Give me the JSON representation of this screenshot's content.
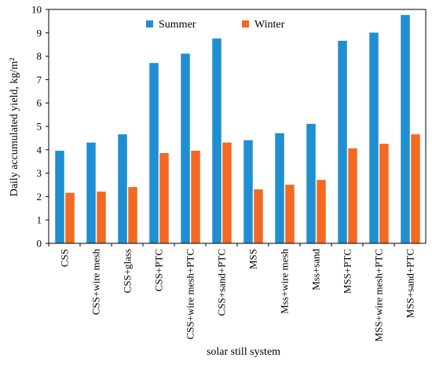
{
  "chart_data": {
    "type": "bar",
    "xlabel": "solar still system",
    "ylabel": "Daily accumulated yield, kg/m²",
    "ylim": [
      0,
      10
    ],
    "yticks": [
      0,
      1,
      2,
      3,
      4,
      5,
      6,
      7,
      8,
      9,
      10
    ],
    "grid": false,
    "legend_position": "top-center",
    "categories": [
      "CSS",
      "CSS+wire mesh",
      "CSS+glass",
      "CSS+PTC",
      "CSS+wire mesh+PTC",
      "CSS+sand+PTC",
      "MSS",
      "Mss+wire mesh",
      "Mss+sand",
      "MSS+PTC",
      "MSS+wire mesh+PTC",
      "MSS+sand+PTC"
    ],
    "series": [
      {
        "name": "Summer",
        "color": "#1f8fd1",
        "values": [
          3.95,
          4.3,
          4.65,
          7.7,
          8.1,
          8.75,
          4.4,
          4.7,
          5.1,
          8.65,
          9.0,
          9.75
        ]
      },
      {
        "name": "Winter",
        "color": "#f26a21",
        "values": [
          2.15,
          2.2,
          2.4,
          3.85,
          3.95,
          4.3,
          2.3,
          2.5,
          2.7,
          4.05,
          4.25,
          4.65
        ]
      }
    ]
  }
}
